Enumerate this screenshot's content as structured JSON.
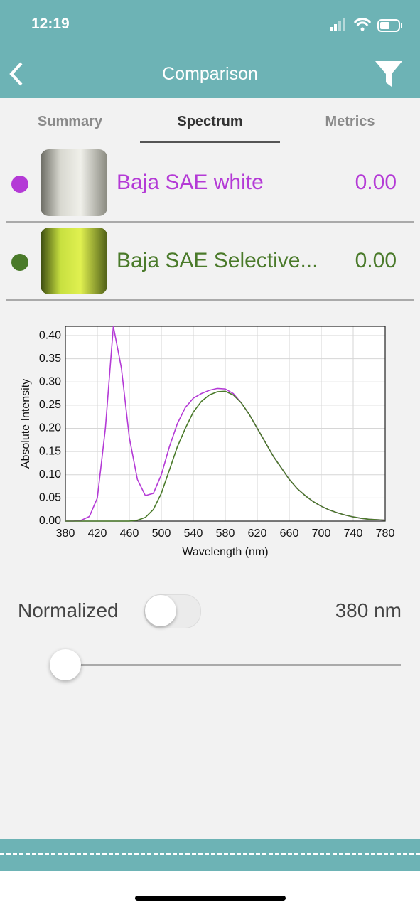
{
  "status_bar": {
    "time": "12:19"
  },
  "nav": {
    "title": "Comparison"
  },
  "tabs": [
    "Summary",
    "Spectrum",
    "Metrics"
  ],
  "items": [
    {
      "name": "Baja SAE white",
      "value": "0.00",
      "color": "#b43ad6"
    },
    {
      "name": "Baja SAE Selective...",
      "value": "0.00",
      "color": "#4a7a2a"
    }
  ],
  "chart_data": {
    "type": "line",
    "xlabel": "Wavelength (nm)",
    "ylabel": "Absolute Intensity",
    "x": [
      380,
      390,
      400,
      410,
      420,
      430,
      440,
      450,
      460,
      470,
      480,
      490,
      500,
      510,
      520,
      530,
      540,
      550,
      560,
      570,
      580,
      590,
      600,
      610,
      620,
      630,
      640,
      650,
      660,
      670,
      680,
      690,
      700,
      710,
      720,
      730,
      740,
      750,
      760,
      770,
      780
    ],
    "series": [
      {
        "name": "Baja SAE white",
        "color": "#b43ad6",
        "values": [
          0,
          0,
          0.002,
          0.01,
          0.05,
          0.2,
          0.42,
          0.33,
          0.18,
          0.09,
          0.055,
          0.06,
          0.1,
          0.16,
          0.21,
          0.245,
          0.265,
          0.275,
          0.282,
          0.286,
          0.285,
          0.275,
          0.255,
          0.23,
          0.2,
          0.17,
          0.14,
          0.115,
          0.09,
          0.07,
          0.055,
          0.042,
          0.032,
          0.024,
          0.018,
          0.013,
          0.009,
          0.006,
          0.004,
          0.003,
          0.002
        ]
      },
      {
        "name": "Baja SAE Selective...",
        "color": "#4a7a2a",
        "values": [
          0,
          0,
          0,
          0,
          0,
          0,
          0,
          0,
          0,
          0.002,
          0.008,
          0.025,
          0.06,
          0.11,
          0.16,
          0.2,
          0.235,
          0.258,
          0.272,
          0.279,
          0.28,
          0.272,
          0.255,
          0.23,
          0.2,
          0.17,
          0.14,
          0.115,
          0.09,
          0.07,
          0.055,
          0.042,
          0.032,
          0.024,
          0.018,
          0.013,
          0.009,
          0.006,
          0.004,
          0.003,
          0.002
        ]
      }
    ],
    "xlim": [
      380,
      780
    ],
    "xticks": [
      380,
      420,
      460,
      500,
      540,
      580,
      620,
      660,
      700,
      740,
      780
    ],
    "ylim": [
      0,
      0.42
    ],
    "yticks": [
      {
        "value": 0,
        "label": "0.00"
      },
      0.05,
      {
        "value": 0.1,
        "label": "0.10"
      },
      0.15,
      {
        "value": 0.2,
        "label": "0.20"
      },
      0.25,
      {
        "value": 0.3,
        "label": "0.30"
      },
      0.35,
      {
        "value": 0.4,
        "label": "0.40"
      }
    ],
    "grid": true
  },
  "controls": {
    "normalized_label": "Normalized",
    "wavelength": "380 nm"
  }
}
